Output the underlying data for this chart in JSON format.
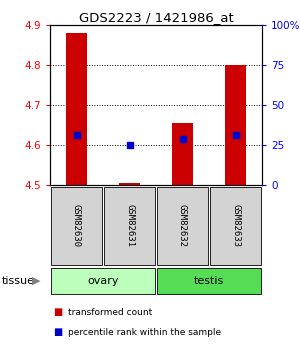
{
  "title": "GDS2223 / 1421986_at",
  "samples": [
    "GSM82630",
    "GSM82631",
    "GSM82632",
    "GSM82633"
  ],
  "tissue_groups": [
    {
      "name": "ovary",
      "indices": [
        0,
        1
      ],
      "color": "#bbffbb"
    },
    {
      "name": "testis",
      "indices": [
        2,
        3
      ],
      "color": "#55dd55"
    }
  ],
  "transformed_counts": [
    4.88,
    4.505,
    4.655,
    4.8
  ],
  "percentile_ranks": [
    4.625,
    4.6,
    4.615,
    4.625
  ],
  "bar_baseline": 4.5,
  "ylim_left": [
    4.5,
    4.9
  ],
  "ylim_right": [
    0,
    100
  ],
  "yticks_left": [
    4.5,
    4.6,
    4.7,
    4.8,
    4.9
  ],
  "yticks_right": [
    0,
    25,
    50,
    75,
    100
  ],
  "ytick_labels_right": [
    "0",
    "25",
    "50",
    "75",
    "100%"
  ],
  "bar_color": "#cc0000",
  "dot_color": "#0000cc",
  "bar_width": 0.4,
  "legend_items": [
    {
      "label": "transformed count",
      "color": "#cc0000"
    },
    {
      "label": "percentile rank within the sample",
      "color": "#0000cc"
    }
  ]
}
